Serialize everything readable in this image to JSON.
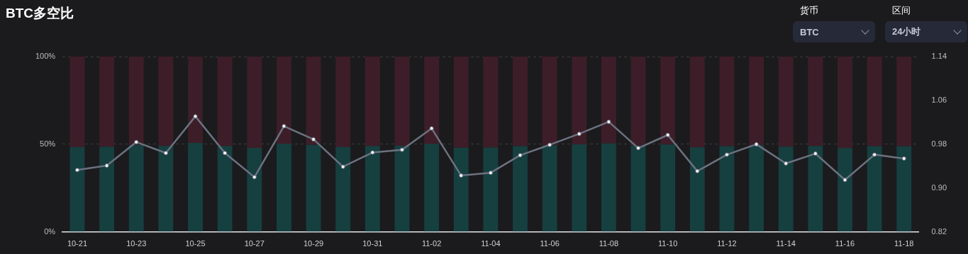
{
  "chart_data": {
    "type": "bar",
    "title": "BTC多空比",
    "stacked": true,
    "grid": "y",
    "legend": false,
    "marker": "circle",
    "line_style": "solid",
    "annotations": [
      "货币",
      "BTC",
      "区间",
      "24小时"
    ],
    "categories": [
      "10-21",
      null,
      "10-23",
      null,
      "10-25",
      null,
      "10-27",
      null,
      "10-29",
      null,
      "10-31",
      null,
      "11-02",
      null,
      "11-04",
      null,
      "11-06",
      null,
      "11-08",
      null,
      "11-10",
      null,
      "11-12",
      null,
      "11-14",
      null,
      "11-16",
      null,
      "11-18"
    ],
    "ylim": [
      0,
      100
    ],
    "yticks": [
      {
        "value": 0,
        "label": "0%"
      },
      {
        "value": 50,
        "label": "50%"
      },
      {
        "value": 100,
        "label": "100%"
      }
    ],
    "y2lim": [
      0.82,
      1.14
    ],
    "y2ticks": [
      0.82,
      {
        "value": 0.9,
        "label": "0.90"
      },
      0.98,
      1.06,
      1.14
    ],
    "series": [
      {
        "color": "#163f40",
        "values": [
          48.3,
          48.5,
          49.6,
          49.1,
          50.8,
          49.1,
          47.9,
          50.3,
          49.7,
          48.4,
          49.1,
          49.2,
          50.2,
          48.0,
          48.1,
          49.0,
          49.5,
          50.0,
          50.5,
          49.3,
          49.9,
          48.2,
          49.0,
          49.5,
          48.6,
          49.1,
          47.8,
          49.0,
          48.8
        ]
      },
      {
        "color": "#3d1e28",
        "values": [
          51.7,
          51.5,
          50.4,
          50.9,
          49.2,
          50.9,
          52.1,
          49.7,
          50.3,
          51.6,
          50.9,
          50.8,
          49.8,
          52.0,
          51.9,
          51.0,
          50.5,
          50.0,
          49.5,
          50.7,
          50.1,
          51.8,
          51.0,
          50.5,
          51.4,
          50.9,
          52.2,
          51.0,
          51.2
        ]
      },
      {
        "type": "line",
        "axis": "y2",
        "color": "#6b7280",
        "values": [
          0.933,
          0.941,
          0.984,
          0.964,
          1.031,
          0.964,
          0.92,
          1.013,
          0.989,
          0.939,
          0.965,
          0.97,
          1.009,
          0.923,
          0.928,
          0.96,
          0.979,
          0.999,
          1.021,
          0.973,
          0.997,
          0.931,
          0.961,
          0.98,
          0.945,
          0.963,
          0.915,
          0.961,
          0.954
        ]
      }
    ]
  }
}
